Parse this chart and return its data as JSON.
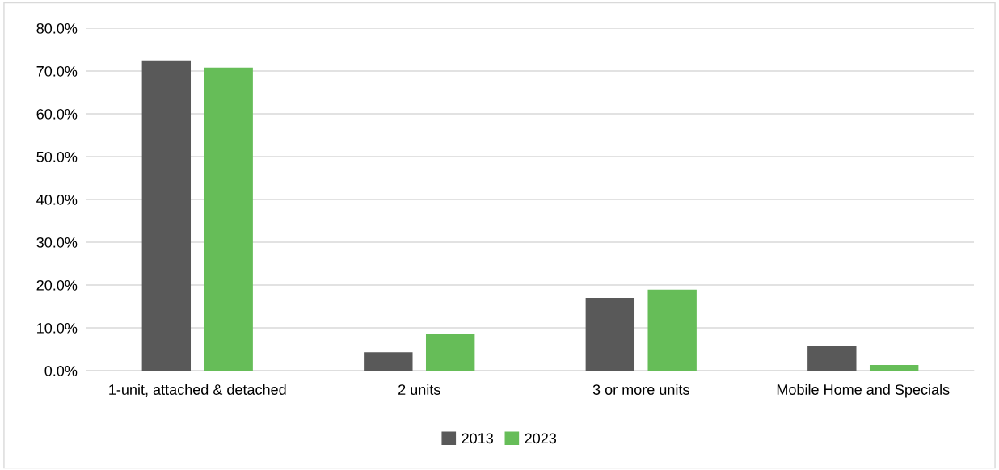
{
  "chart_data": {
    "type": "bar",
    "categories": [
      "1-unit, attached & detached",
      "2 units",
      "3 or more units",
      "Mobile Home and Specials"
    ],
    "series": [
      {
        "name": "2013",
        "color": "#595959",
        "values": [
          72.5,
          4.3,
          17.0,
          5.7
        ]
      },
      {
        "name": "2023",
        "color": "#66bd58",
        "values": [
          70.8,
          8.7,
          18.9,
          1.3
        ]
      }
    ],
    "ylim": [
      0,
      80
    ],
    "yticks": [
      {
        "value": 0,
        "label": "0.0%"
      },
      {
        "value": 10,
        "label": "10.0%"
      },
      {
        "value": 20,
        "label": "20.0%"
      },
      {
        "value": 30,
        "label": "30.0%"
      },
      {
        "value": 40,
        "label": "40.0%"
      },
      {
        "value": 50,
        "label": "50.0%"
      },
      {
        "value": 60,
        "label": "60.0%"
      },
      {
        "value": 70,
        "label": "70.0%"
      },
      {
        "value": 80,
        "label": "80.0%"
      }
    ],
    "grid": "y",
    "legend": "bottom"
  }
}
